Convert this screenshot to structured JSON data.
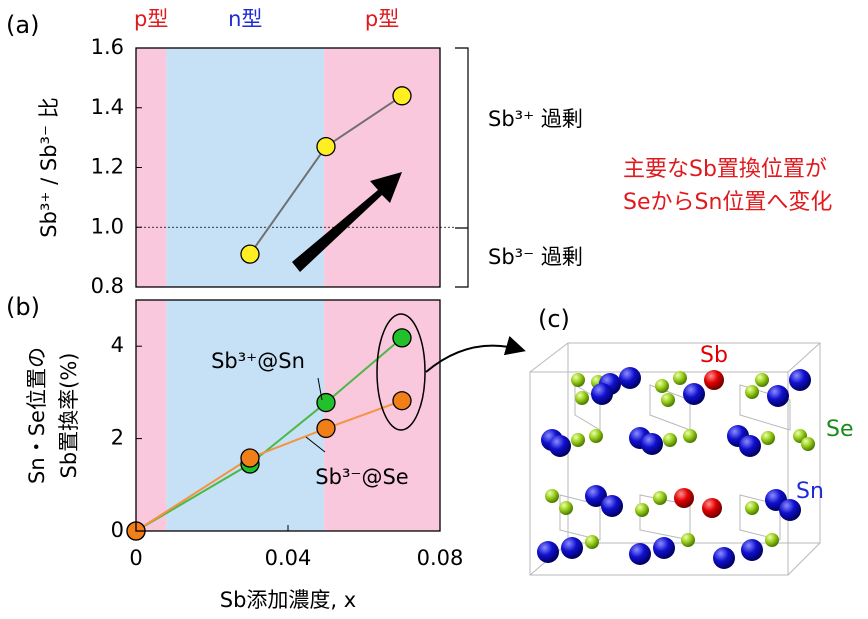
{
  "chart_data": [
    {
      "type": "line",
      "panel_label": "(a)",
      "ylabel": "Sb³⁺ / Sb³⁻ 比",
      "x": [
        0.03,
        0.05,
        0.07
      ],
      "series": [
        {
          "color": "#707070",
          "marker_color": "#ffee22",
          "values": [
            0.91,
            1.27,
            1.44
          ]
        }
      ],
      "xlim": [
        0,
        0.08
      ],
      "ylim": [
        0.8,
        1.6
      ],
      "yticks": [
        0.8,
        {
          "value": 1,
          "label": "1.0"
        },
        1.2,
        1.4,
        1.6
      ],
      "hline": 1,
      "regions": [
        {
          "label": "p型",
          "label_color": "#e0191d",
          "color": "#fac8dd",
          "x": [
            0,
            0.008
          ]
        },
        {
          "label": "n型",
          "label_color": "#1f2bd6",
          "color": "#c6e1f6",
          "x": [
            0.008,
            0.0495
          ]
        },
        {
          "label": "p型",
          "label_color": "#e0191d",
          "color": "#fac8dd",
          "x": [
            0.0495,
            0.08
          ]
        }
      ],
      "bracket_labels": [
        "Sb³⁺ 過剰",
        "Sb³⁻ 過剰"
      ],
      "note": [
        "主要なSb置換位置が",
        "SeからSn位置へ変化"
      ]
    },
    {
      "type": "line",
      "panel_label": "(b)",
      "ylabel": [
        "Sn・Se位置の",
        "Sb置換率(%)"
      ],
      "xlabel": "Sb添加濃度, x",
      "x": [
        0,
        0.03,
        0.05,
        0.07
      ],
      "series": [
        {
          "name": "Sb³⁺@Sn",
          "color": "#4cb848",
          "marker_color": "#22c02a",
          "values": [
            0,
            1.45,
            2.78,
            4.18
          ]
        },
        {
          "name": "Sb³⁻@Se",
          "color": "#f39440",
          "marker_color": "#f07f1a",
          "values": [
            0,
            1.58,
            2.22,
            2.82
          ]
        }
      ],
      "xlim": [
        0,
        0.08
      ],
      "ylim": [
        0,
        5
      ],
      "xticks": [
        0,
        0.04,
        0.08
      ],
      "yticks": [
        0,
        2,
        4
      ],
      "regions": [
        {
          "color": "#fac8dd",
          "x": [
            0,
            0.008
          ]
        },
        {
          "color": "#c6e1f6",
          "x": [
            0.008,
            0.0495
          ]
        },
        {
          "color": "#fac8dd",
          "x": [
            0.0495,
            0.08
          ]
        }
      ]
    }
  ],
  "structure": {
    "panel_label": "(c)",
    "atom_labels": [
      "Sb",
      "Se",
      "Sn"
    ]
  }
}
